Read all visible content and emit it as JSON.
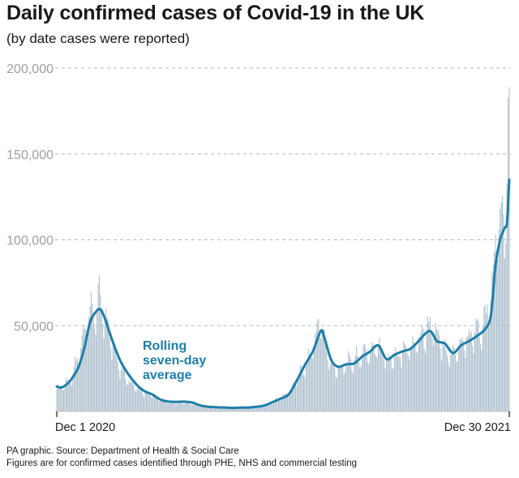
{
  "header": {
    "title": "Daily confirmed cases of Covid-19 in the UK",
    "subtitle": "(by date cases were reported)"
  },
  "chart_data": {
    "type": "bar",
    "title": "Daily confirmed cases of Covid-19 in the UK",
    "subtitle": "(by date cases were reported)",
    "x_labels": [
      "Dec 1 2020",
      "Dec 30 2021"
    ],
    "y_ticks": [
      "200,000",
      "150,000",
      "100,000",
      "50,000"
    ],
    "ylim": [
      0,
      200000
    ],
    "grid": true,
    "bar_color": "#a9bccb",
    "line_color": "#1e7fa8",
    "annotation": [
      "Rolling",
      "seven-day",
      "average"
    ],
    "series": [
      {
        "name": "Daily confirmed cases",
        "type": "bar",
        "anchors": [
          [
            "2020-12-01",
            13000
          ],
          [
            "2020-12-08",
            15500
          ],
          [
            "2020-12-15",
            22000
          ],
          [
            "2020-12-22",
            37000
          ],
          [
            "2020-12-29",
            55000
          ],
          [
            "2021-01-05",
            60000
          ],
          [
            "2021-01-08",
            68000
          ],
          [
            "2021-01-12",
            55000
          ],
          [
            "2021-01-19",
            38000
          ],
          [
            "2021-01-26",
            24000
          ],
          [
            "2021-02-02",
            18000
          ],
          [
            "2021-02-09",
            13000
          ],
          [
            "2021-02-16",
            11000
          ],
          [
            "2021-02-23",
            9000
          ],
          [
            "2021-03-02",
            6500
          ],
          [
            "2021-03-09",
            5200
          ],
          [
            "2021-03-16",
            5000
          ],
          [
            "2021-03-23",
            5500
          ],
          [
            "2021-03-30",
            4500
          ],
          [
            "2021-04-06",
            3000
          ],
          [
            "2021-04-13",
            2500
          ],
          [
            "2021-04-20",
            2300
          ],
          [
            "2021-04-27",
            2200
          ],
          [
            "2021-05-04",
            2000
          ],
          [
            "2021-05-11",
            2200
          ],
          [
            "2021-05-18",
            2300
          ],
          [
            "2021-05-25",
            2800
          ],
          [
            "2021-06-01",
            3500
          ],
          [
            "2021-06-08",
            6000
          ],
          [
            "2021-06-15",
            8500
          ],
          [
            "2021-06-22",
            12000
          ],
          [
            "2021-06-29",
            20000
          ],
          [
            "2021-07-06",
            29000
          ],
          [
            "2021-07-13",
            38000
          ],
          [
            "2021-07-17",
            54000
          ],
          [
            "2021-07-21",
            45000
          ],
          [
            "2021-07-27",
            27000
          ],
          [
            "2021-08-03",
            25000
          ],
          [
            "2021-08-10",
            28000
          ],
          [
            "2021-08-17",
            30000
          ],
          [
            "2021-08-24",
            34000
          ],
          [
            "2021-08-31",
            35000
          ],
          [
            "2021-09-07",
            38000
          ],
          [
            "2021-09-14",
            30000
          ],
          [
            "2021-09-21",
            33000
          ],
          [
            "2021-09-28",
            35000
          ],
          [
            "2021-10-05",
            37000
          ],
          [
            "2021-10-12",
            43000
          ],
          [
            "2021-10-19",
            47000
          ],
          [
            "2021-10-21",
            52000
          ],
          [
            "2021-10-26",
            45000
          ],
          [
            "2021-11-02",
            40000
          ],
          [
            "2021-11-09",
            33000
          ],
          [
            "2021-11-16",
            38000
          ],
          [
            "2021-11-23",
            43000
          ],
          [
            "2021-11-30",
            46000
          ],
          [
            "2021-12-07",
            50000
          ],
          [
            "2021-12-14",
            65000
          ],
          [
            "2021-12-17",
            93000
          ],
          [
            "2021-12-21",
            106000
          ],
          [
            "2021-12-23",
            122000
          ],
          [
            "2021-12-27",
            98000
          ],
          [
            "2021-12-29",
            183000
          ],
          [
            "2021-12-30",
            189000
          ]
        ]
      },
      {
        "name": "Rolling seven-day average",
        "type": "line",
        "points": [
          [
            "2020-12-01",
            14500
          ],
          [
            "2020-12-05",
            14000
          ],
          [
            "2020-12-10",
            16000
          ],
          [
            "2020-12-15",
            20000
          ],
          [
            "2020-12-20",
            26000
          ],
          [
            "2020-12-25",
            37000
          ],
          [
            "2020-12-30",
            52000
          ],
          [
            "2021-01-04",
            58000
          ],
          [
            "2021-01-08",
            59500
          ],
          [
            "2021-01-12",
            54000
          ],
          [
            "2021-01-18",
            42000
          ],
          [
            "2021-01-25",
            30000
          ],
          [
            "2021-02-01",
            22000
          ],
          [
            "2021-02-08",
            16000
          ],
          [
            "2021-02-15",
            12000
          ],
          [
            "2021-02-22",
            10000
          ],
          [
            "2021-03-01",
            7000
          ],
          [
            "2021-03-08",
            5800
          ],
          [
            "2021-03-15",
            5600
          ],
          [
            "2021-03-22",
            5700
          ],
          [
            "2021-03-29",
            5200
          ],
          [
            "2021-04-05",
            3500
          ],
          [
            "2021-04-12",
            2700
          ],
          [
            "2021-04-19",
            2500
          ],
          [
            "2021-04-26",
            2300
          ],
          [
            "2021-05-03",
            2100
          ],
          [
            "2021-05-10",
            2200
          ],
          [
            "2021-05-17",
            2300
          ],
          [
            "2021-05-24",
            2700
          ],
          [
            "2021-05-31",
            3500
          ],
          [
            "2021-06-07",
            5500
          ],
          [
            "2021-06-14",
            7500
          ],
          [
            "2021-06-21",
            10000
          ],
          [
            "2021-06-28",
            18000
          ],
          [
            "2021-07-05",
            27000
          ],
          [
            "2021-07-12",
            35000
          ],
          [
            "2021-07-19",
            47000
          ],
          [
            "2021-07-22",
            43000
          ],
          [
            "2021-07-28",
            30000
          ],
          [
            "2021-08-03",
            26000
          ],
          [
            "2021-08-10",
            27500
          ],
          [
            "2021-08-17",
            28000
          ],
          [
            "2021-08-24",
            32000
          ],
          [
            "2021-08-31",
            35000
          ],
          [
            "2021-09-07",
            38500
          ],
          [
            "2021-09-14",
            30500
          ],
          [
            "2021-09-21",
            33000
          ],
          [
            "2021-09-28",
            35000
          ],
          [
            "2021-10-05",
            36500
          ],
          [
            "2021-10-12",
            41000
          ],
          [
            "2021-10-19",
            46000
          ],
          [
            "2021-10-23",
            46500
          ],
          [
            "2021-10-28",
            41000
          ],
          [
            "2021-11-04",
            39500
          ],
          [
            "2021-11-11",
            34000
          ],
          [
            "2021-11-18",
            38500
          ],
          [
            "2021-11-25",
            41000
          ],
          [
            "2021-12-02",
            44000
          ],
          [
            "2021-12-09",
            48000
          ],
          [
            "2021-12-14",
            56000
          ],
          [
            "2021-12-18",
            85000
          ],
          [
            "2021-12-22",
            100000
          ],
          [
            "2021-12-26",
            107000
          ],
          [
            "2021-12-28",
            110000
          ],
          [
            "2021-12-30",
            135000
          ]
        ]
      }
    ]
  },
  "footer": {
    "line1": "PA graphic. Source: Department of Health & Social Care",
    "line2": "Figures are for confirmed cases identified through PHE, NHS and commercial testing"
  }
}
